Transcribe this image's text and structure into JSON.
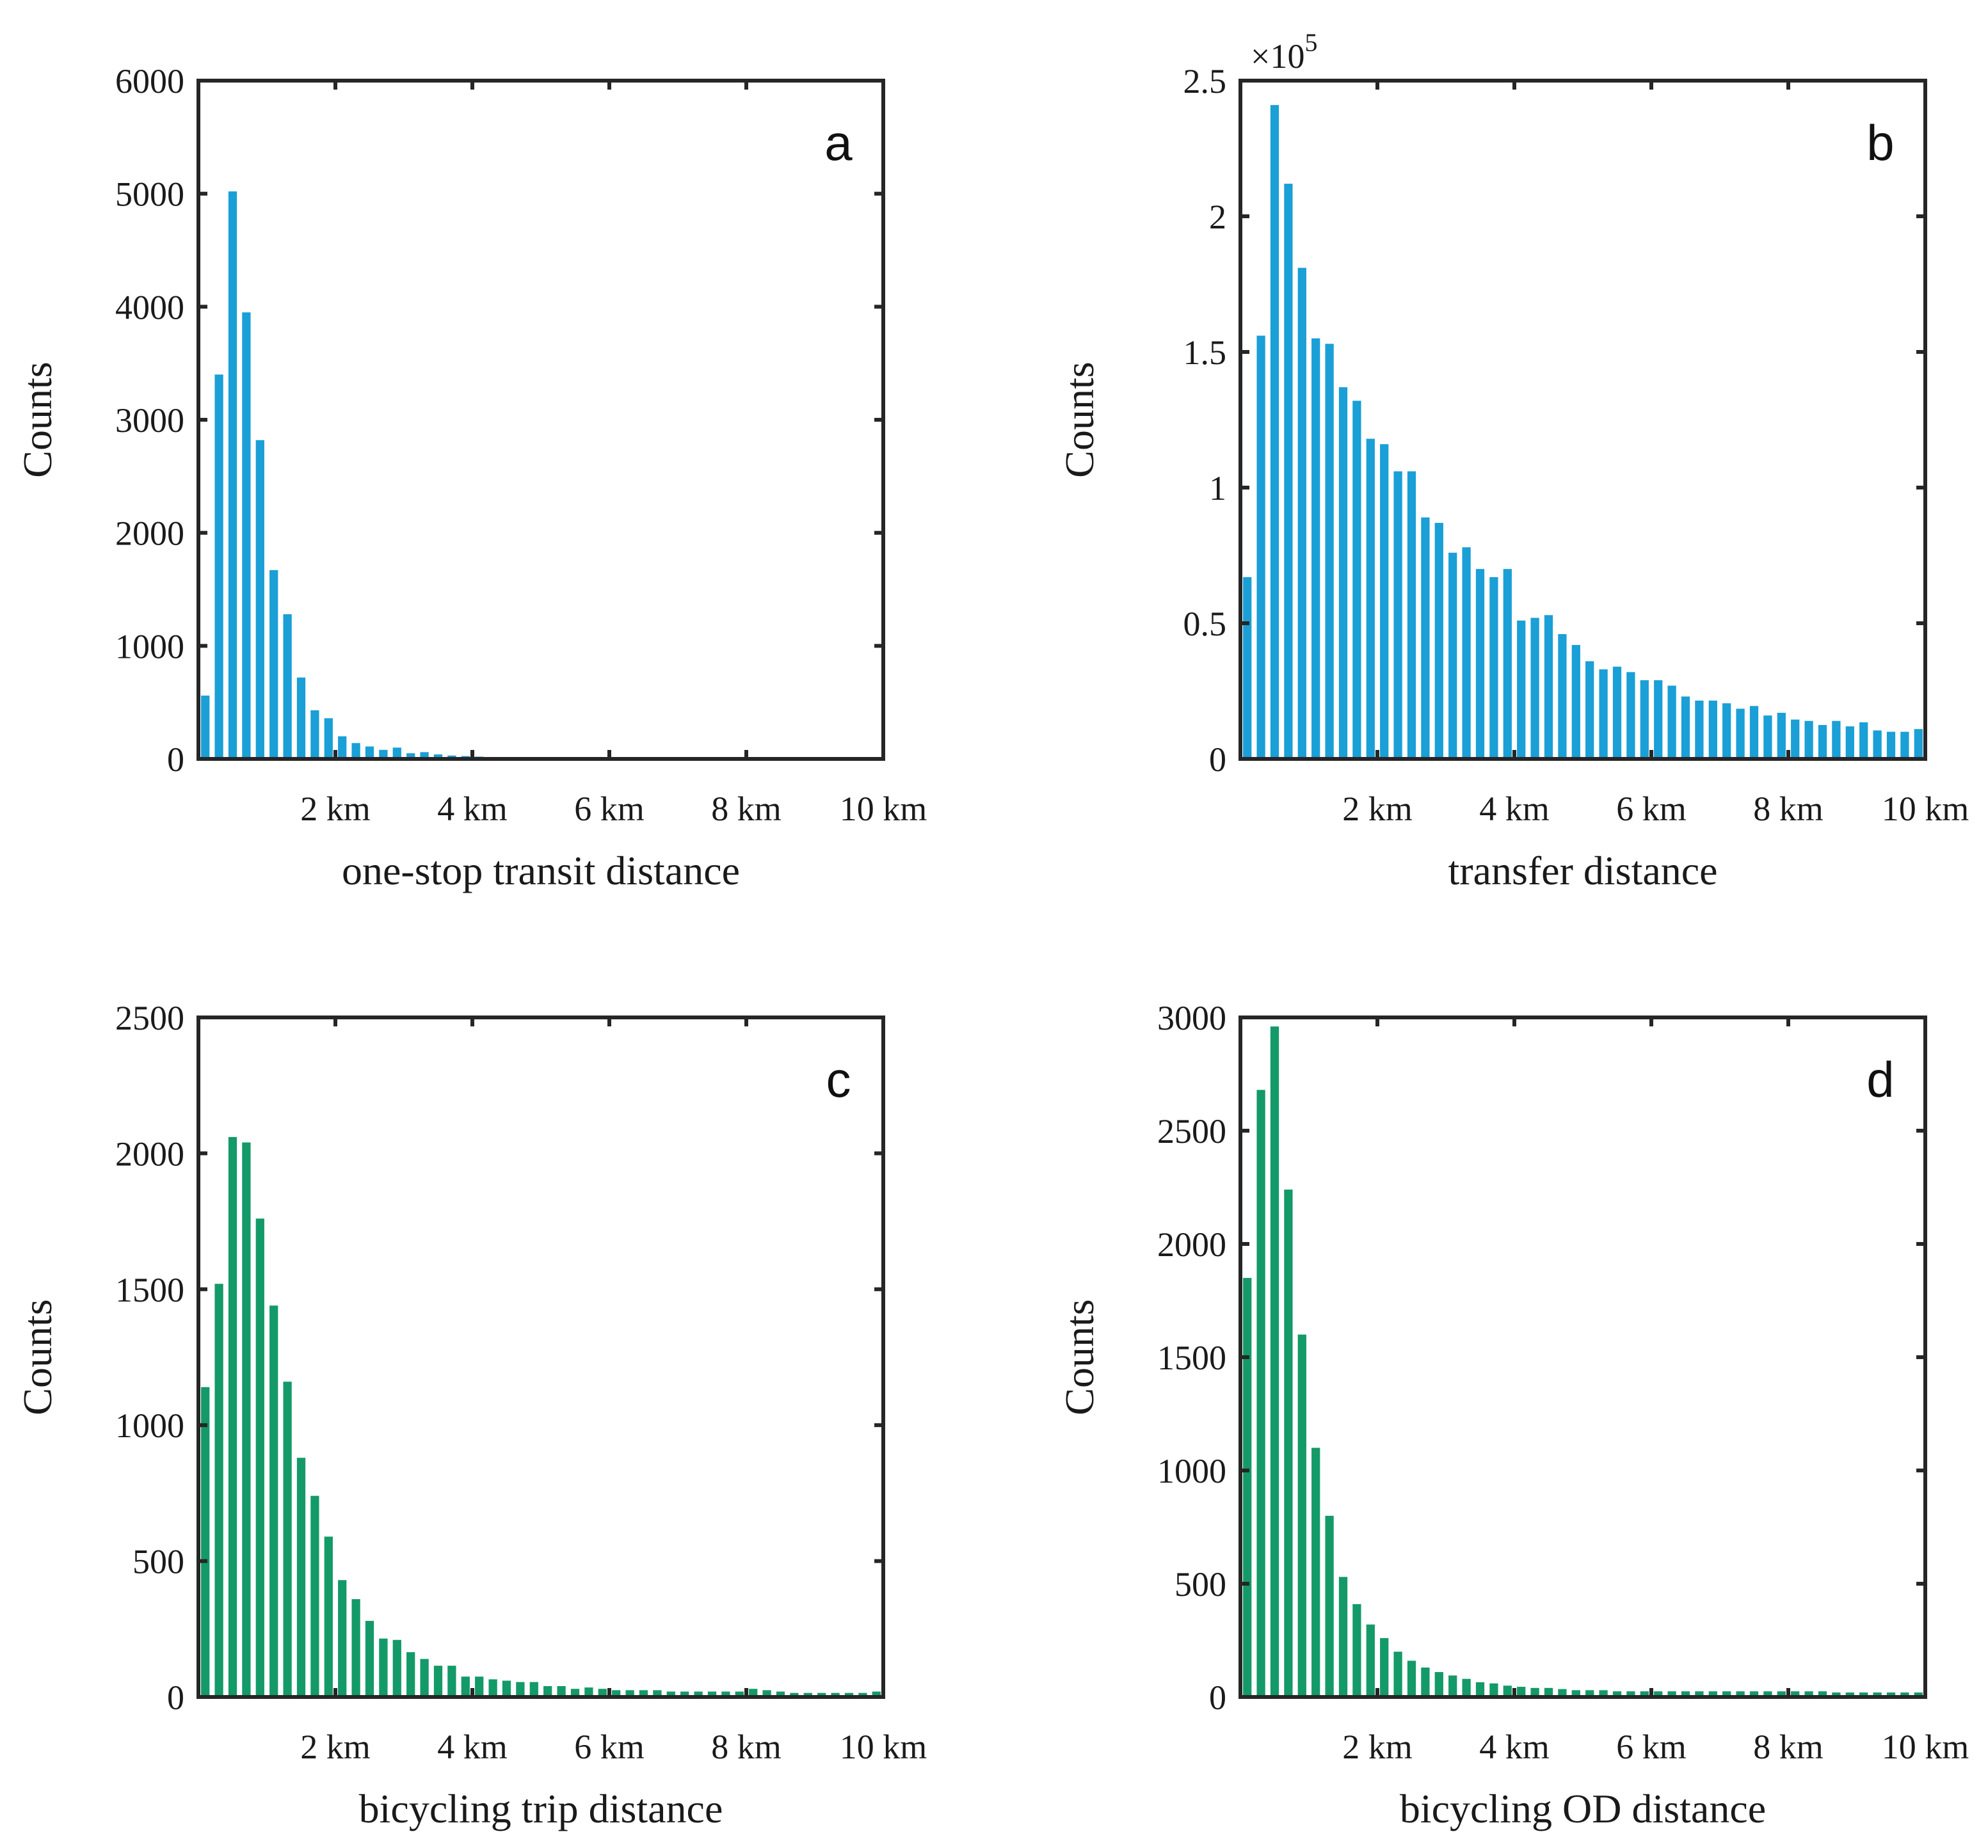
{
  "chart_data": [
    {
      "panel": "a",
      "type": "bar",
      "color": "#1a9fd6",
      "xlabel": "one-stop transit distance",
      "ylabel": "Counts",
      "xlim": [
        0,
        10
      ],
      "ylim": [
        0,
        6000
      ],
      "yticks": [
        0,
        1000,
        2000,
        3000,
        4000,
        5000,
        6000
      ],
      "ytick_labels": [
        "0",
        "1000",
        "2000",
        "3000",
        "4000",
        "5000",
        "6000"
      ],
      "exponent_label": "",
      "xticks": [
        2,
        4,
        6,
        8,
        10
      ],
      "xtick_labels": [
        "2 km",
        "4 km",
        "6 km",
        "8 km",
        "10 km"
      ],
      "bin_width": 0.2,
      "values": [
        560,
        3400,
        5020,
        3950,
        2820,
        1670,
        1280,
        720,
        430,
        360,
        200,
        140,
        110,
        80,
        100,
        50,
        60,
        40,
        30,
        25,
        20,
        15,
        12,
        10,
        10,
        8,
        8,
        6,
        6,
        6,
        5,
        5,
        5,
        5,
        5,
        4,
        4,
        4,
        4,
        4,
        4,
        3,
        3,
        3,
        3,
        3,
        3,
        3,
        3,
        3
      ]
    },
    {
      "panel": "b",
      "type": "bar",
      "color": "#1a9fd6",
      "xlabel": "transfer distance",
      "ylabel": "Counts",
      "xlim": [
        0,
        10
      ],
      "ylim": [
        0,
        250000
      ],
      "yticks": [
        0,
        50000,
        100000,
        150000,
        200000,
        250000
      ],
      "ytick_labels": [
        "0",
        "0.5",
        "1",
        "1.5",
        "2",
        "2.5"
      ],
      "exponent_label": "×10",
      "exponent_power": "5",
      "xticks": [
        2,
        4,
        6,
        8,
        10
      ],
      "xtick_labels": [
        "2 km",
        "4 km",
        "6 km",
        "8 km",
        "10 km"
      ],
      "bin_width": 0.2,
      "values": [
        67000,
        156000,
        241000,
        212000,
        181000,
        155000,
        153000,
        137000,
        132000,
        118000,
        116000,
        106000,
        106000,
        89000,
        87000,
        76000,
        78000,
        70000,
        67000,
        70000,
        51000,
        52000,
        53000,
        46000,
        42000,
        36000,
        33000,
        34000,
        32000,
        29000,
        29000,
        27000,
        23000,
        21500,
        21500,
        20500,
        18500,
        19500,
        16000,
        17000,
        14500,
        14000,
        12500,
        14000,
        12000,
        13500,
        10500,
        10000,
        10000,
        11000
      ]
    },
    {
      "panel": "c",
      "type": "bar",
      "color": "#139a68",
      "xlabel": "bicycling trip distance",
      "ylabel": "Counts",
      "xlim": [
        0,
        10
      ],
      "ylim": [
        0,
        2500
      ],
      "yticks": [
        0,
        500,
        1000,
        1500,
        2000,
        2500
      ],
      "ytick_labels": [
        "0",
        "500",
        "1000",
        "1500",
        "2000",
        "2500"
      ],
      "exponent_label": "",
      "xticks": [
        2,
        4,
        6,
        8,
        10
      ],
      "xtick_labels": [
        "2 km",
        "4 km",
        "6 km",
        "8 km",
        "10 km"
      ],
      "bin_width": 0.2,
      "values": [
        1140,
        1520,
        2060,
        2040,
        1760,
        1440,
        1160,
        880,
        740,
        590,
        430,
        360,
        280,
        215,
        210,
        165,
        140,
        115,
        115,
        75,
        75,
        65,
        60,
        55,
        55,
        40,
        40,
        30,
        35,
        30,
        25,
        25,
        25,
        25,
        20,
        20,
        20,
        20,
        20,
        20,
        30,
        25,
        20,
        15,
        15,
        15,
        15,
        15,
        15,
        20
      ]
    },
    {
      "panel": "d",
      "type": "bar",
      "color": "#139a68",
      "xlabel": "bicycling OD distance",
      "ylabel": "Counts",
      "xlim": [
        0,
        10
      ],
      "ylim": [
        0,
        3000
      ],
      "yticks": [
        0,
        500,
        1000,
        1500,
        2000,
        2500,
        3000
      ],
      "ytick_labels": [
        "0",
        "500",
        "1000",
        "1500",
        "2000",
        "2500",
        "3000"
      ],
      "exponent_label": "",
      "xticks": [
        2,
        4,
        6,
        8,
        10
      ],
      "xtick_labels": [
        "2 km",
        "4 km",
        "6 km",
        "8 km",
        "10 km"
      ],
      "bin_width": 0.2,
      "values": [
        1850,
        2680,
        2960,
        2240,
        1600,
        1100,
        800,
        530,
        410,
        320,
        260,
        200,
        160,
        130,
        110,
        95,
        80,
        65,
        60,
        50,
        45,
        40,
        40,
        35,
        30,
        30,
        30,
        25,
        25,
        25,
        25,
        25,
        25,
        25,
        25,
        25,
        25,
        25,
        25,
        25,
        25,
        25,
        25,
        20,
        20,
        20,
        20,
        20,
        20,
        20
      ]
    }
  ]
}
